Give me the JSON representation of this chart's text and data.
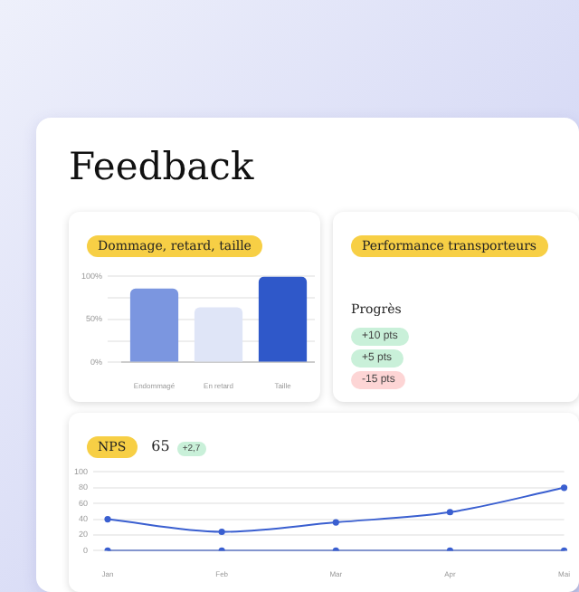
{
  "chart_data": [
    {
      "type": "bar",
      "title": "Dommage, retard, taille",
      "annotations": [
        "Feedback"
      ],
      "categories": [
        "Endommagé",
        "En retard",
        "Taille"
      ],
      "values": [
        86,
        64,
        100
      ],
      "colors": [
        "#7b96e0",
        "#dfe5f7",
        "#2f58c9"
      ],
      "ylim": [
        0,
        100
      ],
      "yticks": [
        {
          "value": 0,
          "label": "0%"
        },
        {
          "value": 25,
          "label": null
        },
        {
          "value": 50,
          "label": "50%"
        },
        {
          "value": 75,
          "label": null
        },
        {
          "value": 100,
          "label": "100%"
        }
      ],
      "grid": "y",
      "legend": false
    },
    {
      "type": "other",
      "title": "Performance transporteurs",
      "annotations": [
        "Progrès",
        "+10 pts",
        "+5 pts",
        "-15 pts"
      ],
      "colors": [
        null,
        "#c9f0d9",
        "#c9f0d9",
        "#fdd5d5"
      ]
    },
    {
      "type": "line",
      "title": "NPS",
      "annotations": [
        "65",
        "+2,7"
      ],
      "categories": [
        "Jan",
        "Feb",
        "Mar",
        "Apr",
        "Mai"
      ],
      "series": [
        {
          "color": "#3a5fd0",
          "values": [
            40,
            24,
            36,
            49,
            80
          ]
        },
        {
          "color": "#3a5fd0",
          "values": [
            0,
            0,
            0,
            0,
            0
          ]
        }
      ],
      "ylim": [
        0,
        100
      ],
      "yticks": [
        0,
        20,
        40,
        60,
        80,
        100
      ],
      "grid": "y",
      "legend": false,
      "marker": "circle",
      "line_style": "solid"
    }
  ]
}
